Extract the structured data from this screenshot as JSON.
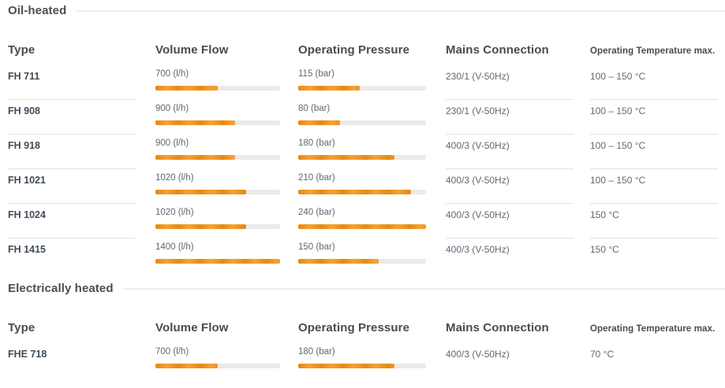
{
  "colors": {
    "accent_orange": "#ef9313",
    "bar_track": "#eaeaea",
    "divider": "#e1e1e1",
    "heading_text": "#4b4b4b",
    "type_text": "#414c57",
    "body_text": "#5e6a74"
  },
  "sections": [
    {
      "title": "Oil-heated",
      "columns": {
        "type": "Type",
        "volume_flow": "Volume Flow",
        "operating_pressure": "Operating Pressure",
        "mains_connection": "Mains Connection",
        "operating_temperature": "Operating Temperature max."
      },
      "rows": [
        {
          "type": "FH 711",
          "volume_flow": {
            "label": "700 (l/h)",
            "percent": 50
          },
          "operating_pressure": {
            "label": "115 (bar)",
            "percent": 48
          },
          "mains_connection": "230/1 (V-50Hz)",
          "operating_temperature": "100 – 150 °C"
        },
        {
          "type": "FH 908",
          "volume_flow": {
            "label": "900 (l/h)",
            "percent": 64
          },
          "operating_pressure": {
            "label": "80 (bar)",
            "percent": 33
          },
          "mains_connection": "230/1 (V-50Hz)",
          "operating_temperature": "100 – 150 °C"
        },
        {
          "type": "FH 918",
          "volume_flow": {
            "label": "900 (l/h)",
            "percent": 64
          },
          "operating_pressure": {
            "label": "180 (bar)",
            "percent": 75
          },
          "mains_connection": "400/3 (V-50Hz)",
          "operating_temperature": "100 – 150 °C"
        },
        {
          "type": "FH 1021",
          "volume_flow": {
            "label": "1020 (l/h)",
            "percent": 73
          },
          "operating_pressure": {
            "label": "210 (bar)",
            "percent": 88
          },
          "mains_connection": "400/3 (V-50Hz)",
          "operating_temperature": "100 – 150 °C"
        },
        {
          "type": "FH 1024",
          "volume_flow": {
            "label": "1020 (l/h)",
            "percent": 73
          },
          "operating_pressure": {
            "label": "240 (bar)",
            "percent": 100
          },
          "mains_connection": "400/3 (V-50Hz)",
          "operating_temperature": "150 °C"
        },
        {
          "type": "FH 1415",
          "volume_flow": {
            "label": "1400 (l/h)",
            "percent": 100
          },
          "operating_pressure": {
            "label": "150 (bar)",
            "percent": 63
          },
          "mains_connection": "400/3 (V-50Hz)",
          "operating_temperature": "150 °C"
        }
      ]
    },
    {
      "title": "Electrically heated",
      "columns": {
        "type": "Type",
        "volume_flow": "Volume Flow",
        "operating_pressure": "Operating Pressure",
        "mains_connection": "Mains Connection",
        "operating_temperature": "Operating Temperature max."
      },
      "rows": [
        {
          "type": "FHE 718",
          "volume_flow": {
            "label": "700 (l/h)",
            "percent": 50
          },
          "operating_pressure": {
            "label": "180 (bar)",
            "percent": 75
          },
          "mains_connection": "400/3 (V-50Hz)",
          "operating_temperature": "70 °C"
        }
      ]
    }
  ]
}
